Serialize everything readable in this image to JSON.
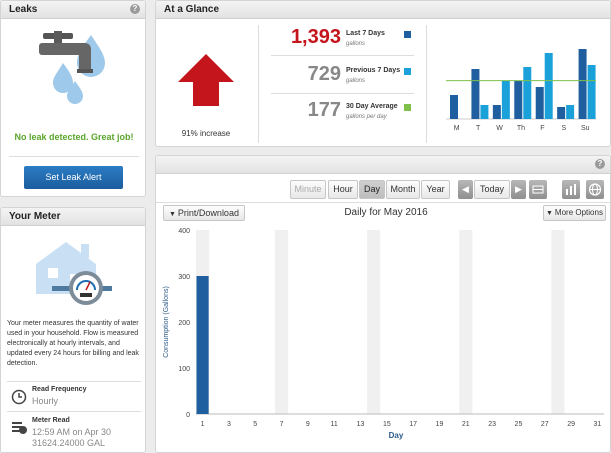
{
  "leaks": {
    "title": "Leaks",
    "status": "No leak detected. Great job!",
    "button": "Set Leak Alert"
  },
  "meter": {
    "title": "Your Meter",
    "description": "Your meter measures the quantity of water used in your household. Flow is measured electronically at hourly intervals, and updated every 24 hours for billing and leak detection.",
    "read_frequency_label": "Read Frequency",
    "read_frequency_value": "Hourly",
    "meter_read_label": "Meter Read",
    "meter_read_time": "12:59 AM on Apr 30",
    "meter_read_value": "31624.24000 GAL"
  },
  "glance": {
    "title": "At a Glance",
    "percent": "91% increase",
    "last7_value": "1,393",
    "last7_label": "Last 7 Days",
    "last7_unit": "gallons",
    "prev7_value": "729",
    "prev7_label": "Previous 7 Days",
    "prev7_unit": "gallons",
    "avg_value": "177",
    "avg_label": "30 Day Average",
    "avg_unit": "gallons per day",
    "colors": {
      "last7": "#1f5f9f",
      "prev7": "#1ba1d9",
      "avg": "#7fc04a",
      "red": "#c4151c"
    }
  },
  "weekly_chart": {
    "type": "bar",
    "categories": [
      "M",
      "T",
      "W",
      "Th",
      "F",
      "S",
      "Su"
    ],
    "series": [
      {
        "values": [
          60,
          125,
          35,
          95,
          80,
          30,
          175
        ]
      },
      {
        "values": [
          0,
          35,
          95,
          130,
          165,
          35,
          135
        ]
      }
    ],
    "average": 96,
    "ylim": [
      0,
      200
    ]
  },
  "toolbar": {
    "minute": "Minute",
    "hour": "Hour",
    "day": "Day",
    "month": "Month",
    "year": "Year",
    "today": "Today",
    "prev_icon": "◀",
    "next_icon": "▶"
  },
  "chart_header": {
    "print": "Print/Download",
    "title": "Daily for May 2016",
    "more": "More Options"
  },
  "chart_data": {
    "type": "bar",
    "title": "Daily for May 2016",
    "xlabel": "Day",
    "ylabel": "Consumption (Gallons)",
    "ylim": [
      0,
      400
    ],
    "yticks": [
      "0",
      "100",
      "200",
      "300",
      "400"
    ],
    "xticks": [
      "1",
      "3",
      "5",
      "7",
      "9",
      "11",
      "13",
      "15",
      "17",
      "19",
      "21",
      "23",
      "25",
      "27",
      "29",
      "31"
    ],
    "categories": [
      1
    ],
    "values": [
      300
    ],
    "bar_color": "#1f5f9f"
  }
}
